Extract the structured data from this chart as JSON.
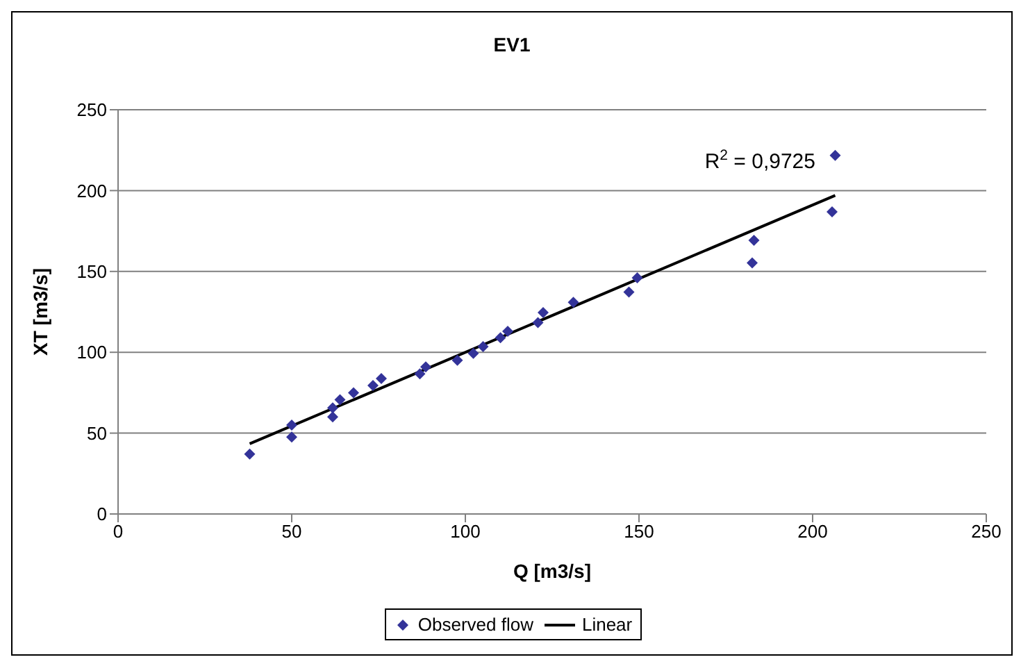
{
  "chart_data": {
    "type": "scatter",
    "title": "EV1",
    "xlabel": "Q [m3/s]",
    "ylabel": "XT [m3/s]",
    "xlim": [
      0,
      250
    ],
    "xticks": [
      0,
      50,
      100,
      150,
      200,
      250
    ],
    "ylim": [
      0,
      250
    ],
    "yticks": [
      0,
      50,
      100,
      150,
      200,
      250
    ],
    "grid": "y",
    "legend": "bottom",
    "marker": "diamond",
    "annotations": [
      "R$^{2}$ = 0,9725"
    ],
    "series": [
      {
        "name": "Observed flow",
        "color": "#333399",
        "x": [
          37.9,
          50,
          50,
          61.8,
          61.8,
          63.9,
          67.8,
          73.4,
          75.8,
          86.9,
          88.6,
          97.7,
          102.3,
          105.1,
          110.1,
          112.2,
          120.9,
          122.4,
          131.1,
          147.1,
          149.5,
          182.6,
          183.1,
          205.6,
          206.5
        ],
        "values": [
          37,
          47.6,
          55,
          60,
          65.6,
          70.7,
          75,
          79.5,
          83.8,
          86.7,
          91,
          95,
          99.3,
          103.5,
          109,
          113,
          118.3,
          124.6,
          130.9,
          137.2,
          146,
          155.3,
          169.2,
          186.9,
          221.8
        ]
      },
      {
        "name": "Linear",
        "type": "line",
        "color": "#000000",
        "line_style": "solid",
        "marker": "none",
        "x": [
          37.9,
          206.5
        ],
        "values": [
          43.4,
          197
        ]
      }
    ]
  }
}
